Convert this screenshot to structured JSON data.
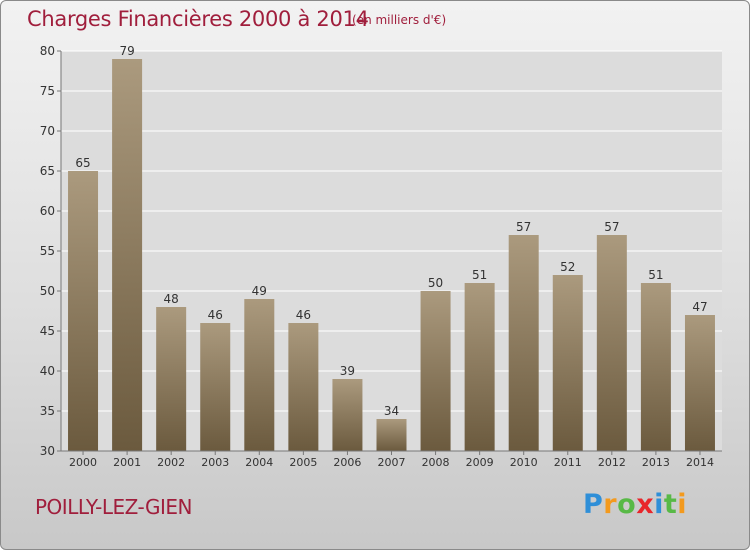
{
  "header": {
    "title": "Charges Financières 2000 à 2014",
    "subtitle": "(en milliers d'€)"
  },
  "footer": {
    "location": "POILLY-LEZ-GIEN"
  },
  "logo": {
    "letters": [
      "P",
      "r",
      "o",
      "x",
      "i",
      "t",
      "i"
    ],
    "colors": [
      "#2f8fd8",
      "#f39a1e",
      "#58b946",
      "#e8262b",
      "#2f8fd8",
      "#58b946",
      "#f39a1e"
    ]
  },
  "colors": {
    "title": "#a01e3c",
    "bar_top": "#ab9a7e",
    "bar_bottom": "#6b5a3e",
    "grid": "#ffffff",
    "plot_bg": "#dcdcdc"
  },
  "chart_data": {
    "type": "bar",
    "title": "Charges Financières 2000 à 2014",
    "subtitle": "(en milliers d'€)",
    "categories": [
      "2000",
      "2001",
      "2002",
      "2003",
      "2004",
      "2005",
      "2006",
      "2007",
      "2008",
      "2009",
      "2010",
      "2011",
      "2012",
      "2013",
      "2014"
    ],
    "values": [
      65,
      79,
      48,
      46,
      49,
      46,
      39,
      34,
      50,
      51,
      57,
      52,
      57,
      51,
      47
    ],
    "ylim": [
      30,
      80
    ],
    "yticks": [
      30,
      35,
      40,
      45,
      50,
      55,
      60,
      65,
      70,
      75,
      80
    ],
    "grid": true,
    "data_labels": true
  }
}
